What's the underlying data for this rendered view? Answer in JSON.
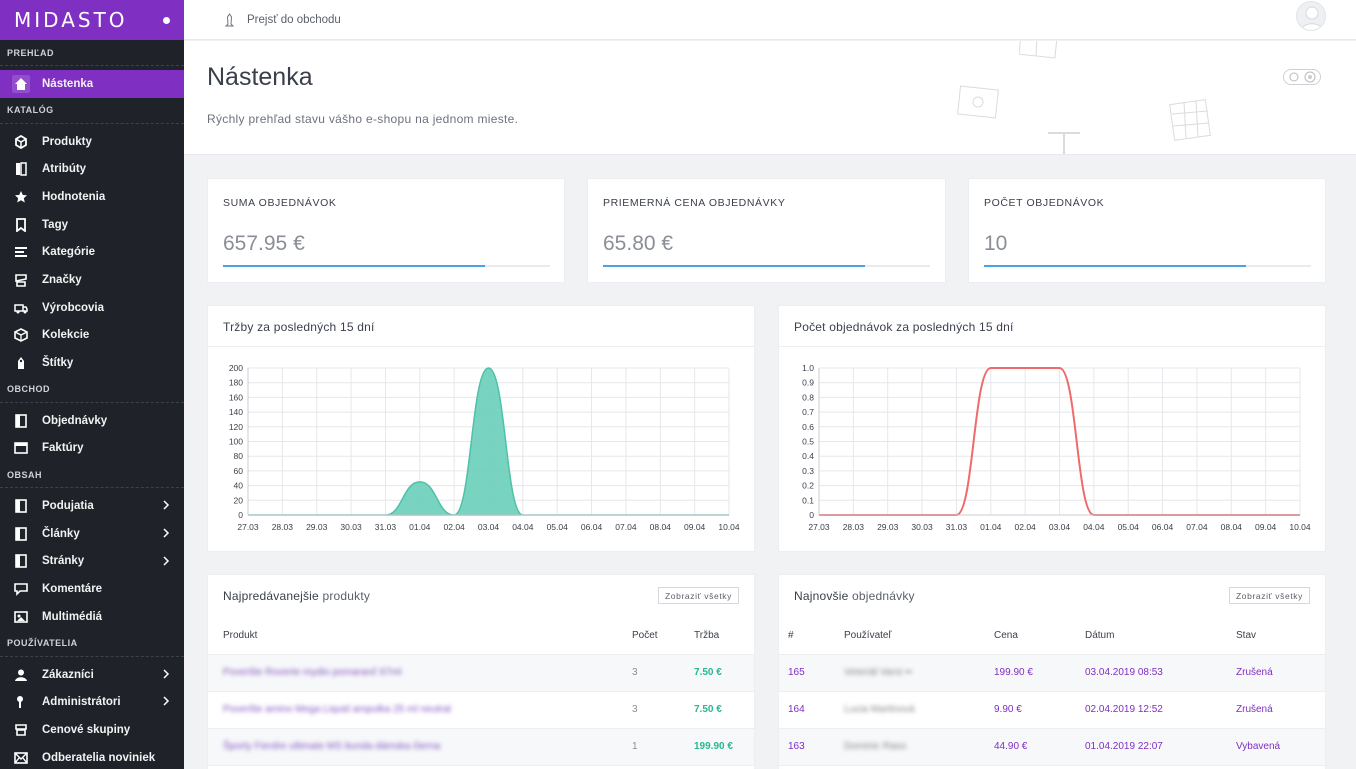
{
  "app": {
    "logo": "MIDASTO"
  },
  "topbar": {
    "store_link": "Prejsť do obchodu"
  },
  "sidebar": {
    "sections": [
      {
        "title": "PREHĽAD",
        "items": [
          {
            "label": "Nástenka",
            "icon": "home-icon",
            "active": true
          }
        ]
      },
      {
        "title": "KATALÓG",
        "items": [
          {
            "label": "Produkty",
            "icon": "cubes-icon"
          },
          {
            "label": "Atribúty",
            "icon": "book-icon"
          },
          {
            "label": "Hodnotenia",
            "icon": "star-icon"
          },
          {
            "label": "Tagy",
            "icon": "bookmark-icon"
          },
          {
            "label": "Kategórie",
            "icon": "list-icon"
          },
          {
            "label": "Značky",
            "icon": "shield-icon"
          },
          {
            "label": "Výrobcovia",
            "icon": "truck-icon"
          },
          {
            "label": "Kolekcie",
            "icon": "box-icon"
          },
          {
            "label": "Štítky",
            "icon": "tag-icon"
          }
        ]
      },
      {
        "title": "OBCHOD",
        "items": [
          {
            "label": "Objednávky",
            "icon": "orders-icon"
          },
          {
            "label": "Faktúry",
            "icon": "invoice-icon"
          }
        ]
      },
      {
        "title": "OBSAH",
        "items": [
          {
            "label": "Podujatia",
            "icon": "events-icon",
            "chevron": true
          },
          {
            "label": "Články",
            "icon": "article-icon",
            "chevron": true
          },
          {
            "label": "Stránky",
            "icon": "pages-icon",
            "chevron": true
          },
          {
            "label": "Komentáre",
            "icon": "comment-icon"
          },
          {
            "label": "Multimédiá",
            "icon": "media-icon"
          }
        ]
      },
      {
        "title": "POUŽÍVATELIA",
        "items": [
          {
            "label": "Zákazníci",
            "icon": "user-icon",
            "chevron": true
          },
          {
            "label": "Administrátori",
            "icon": "admin-icon",
            "chevron": true
          },
          {
            "label": "Cenové skupiny",
            "icon": "group-icon"
          },
          {
            "label": "Odberatelia noviniek",
            "icon": "mail-icon"
          }
        ]
      }
    ]
  },
  "header": {
    "title": "Nástenka",
    "subtitle": "Rýchly prehľad stavu vášho e-shopu na jednom mieste."
  },
  "stats": [
    {
      "label": "SUMA OBJEDNÁVOK",
      "value": "657.95 €",
      "progress": 0.8
    },
    {
      "label": "PRIEMERNÁ CENA OBJEDNÁVKY",
      "value": "65.80 €",
      "progress": 0.8
    },
    {
      "label": "POČET OBJEDNÁVOK",
      "value": "10",
      "progress": 0.8
    }
  ],
  "chart_data": [
    {
      "type": "area",
      "title": "Tržby za posledných 15 dní",
      "x": [
        "27.03",
        "28.03",
        "29.03",
        "30.03",
        "31.03",
        "01.04",
        "02.04",
        "03.04",
        "04.04",
        "05.04",
        "06.04",
        "07.04",
        "08.04",
        "09.04",
        "10.04"
      ],
      "values": [
        0,
        0,
        0,
        0,
        0,
        45,
        0,
        200,
        0,
        0,
        0,
        0,
        0,
        0,
        0
      ],
      "yticks": [
        "0",
        "20",
        "40",
        "60",
        "80",
        "100",
        "120",
        "140",
        "160",
        "180",
        "200"
      ],
      "ylim": [
        0,
        200
      ],
      "color": "#71d1bd",
      "grid": true
    },
    {
      "type": "line",
      "title": "Počet objednávok za posledných 15 dní",
      "x": [
        "27.03",
        "28.03",
        "29.03",
        "30.03",
        "31.03",
        "01.04",
        "02.04",
        "03.04",
        "04.04",
        "05.04",
        "06.04",
        "07.04",
        "08.04",
        "09.04",
        "10.04"
      ],
      "values": [
        0,
        0,
        0,
        0,
        0,
        1,
        1,
        1,
        0,
        0,
        0,
        0,
        0,
        0,
        0
      ],
      "yticks": [
        "0",
        "0.1",
        "0.2",
        "0.3",
        "0.4",
        "0.5",
        "0.6",
        "0.7",
        "0.8",
        "0.9",
        "1.0"
      ],
      "ylim": [
        0,
        1
      ],
      "color": "#ef6b6b",
      "grid": true
    }
  ],
  "top_products": {
    "title_a": "Najpredávanejšie",
    "title_b": "produkty",
    "button": "Zobraziť všetky",
    "columns": [
      "Produkt",
      "Počet",
      "Tržba"
    ],
    "rows": [
      {
        "name": "Poveršte Roverte mydio pomaranč 67ml",
        "count": "3",
        "revenue": "7.50 €"
      },
      {
        "name": "Poveršte amino Mega Liquid ampulka 25 ml neutral",
        "count": "3",
        "revenue": "7.50 €"
      },
      {
        "name": "Športy Fierdre ultimate MS bunda dámska čierna",
        "count": "1",
        "revenue": "199.90 €"
      }
    ]
  },
  "latest_orders": {
    "title_a": "Najnovšie",
    "title_b": "objednávky",
    "button": "Zobraziť všetky",
    "columns": [
      "#",
      "Používateľ",
      "Cena",
      "Dátum",
      "Stav"
    ],
    "rows": [
      {
        "id": "165",
        "user": "Veteriál Varsi ••",
        "price": "199.90 €",
        "date": "03.04.2019 08:53",
        "status": "Zrušená"
      },
      {
        "id": "164",
        "user": "Lucia Martinová",
        "price": "9.90 €",
        "date": "02.04.2019 12:52",
        "status": "Zrušená"
      },
      {
        "id": "163",
        "user": "Dominic Raso",
        "price": "44.90 €",
        "date": "01.04.2019 22:07",
        "status": "Vybavená"
      }
    ]
  }
}
